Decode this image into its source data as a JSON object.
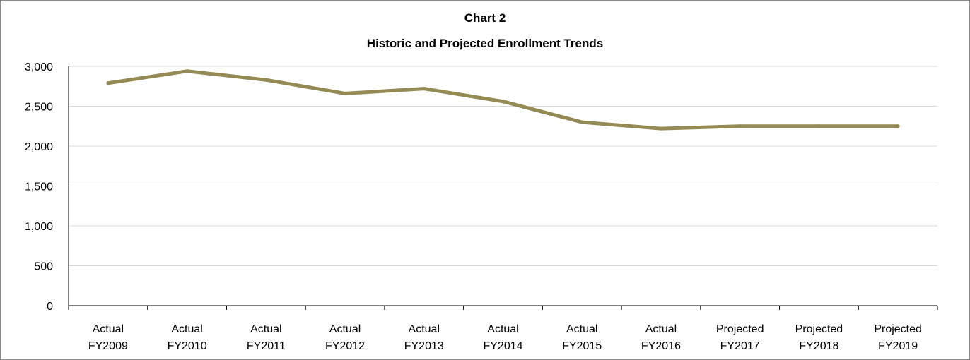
{
  "chart_data": {
    "type": "line",
    "title": "Chart 2",
    "subtitle": "Historic and Projected Enrollment Trends",
    "xlabel": "",
    "ylabel": "",
    "categories": [
      [
        "Actual",
        "FY2009"
      ],
      [
        "Actual",
        "FY2010"
      ],
      [
        "Actual",
        "FY2011"
      ],
      [
        "Actual",
        "FY2012"
      ],
      [
        "Actual",
        "FY2013"
      ],
      [
        "Actual",
        "FY2014"
      ],
      [
        "Actual",
        "FY2015"
      ],
      [
        "Actual",
        "FY2016"
      ],
      [
        "Projected",
        "FY2017"
      ],
      [
        "Projected",
        "FY2018"
      ],
      [
        "Projected",
        "FY2019"
      ]
    ],
    "series": [
      {
        "values": [
          2790,
          2940,
          2830,
          2660,
          2720,
          2560,
          2300,
          2220,
          2250,
          2250,
          2250
        ],
        "color": "#948a54"
      }
    ],
    "ylim": [
      0,
      3000
    ],
    "yticks": [
      0,
      500,
      1000,
      1500,
      2000,
      2500,
      3000
    ],
    "ytick_labels": [
      "0",
      "500",
      "1,000",
      "1,500",
      "2,000",
      "2,500",
      "3,000"
    ],
    "grid": true,
    "legend": "none"
  }
}
